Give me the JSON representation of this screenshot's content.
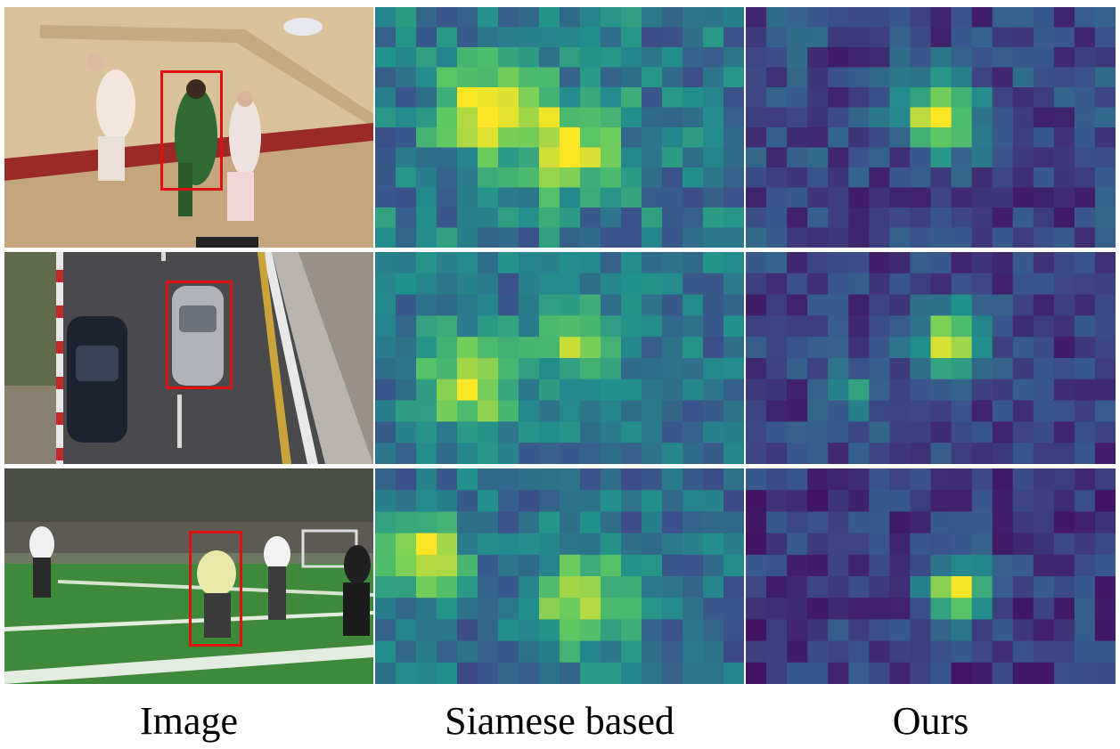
{
  "rows": [
    {
      "scene": "basketball",
      "target_box_color": "#e01010"
    },
    {
      "scene": "road-cars",
      "target_box_color": "#e01010"
    },
    {
      "scene": "soccer-field",
      "target_box_color": "#e01010"
    }
  ],
  "columns": [
    {
      "caption": "Image"
    },
    {
      "caption": "Siamese based"
    },
    {
      "caption": "Ours"
    }
  ],
  "colormap": [
    "#440154",
    "#3b528b",
    "#21918c",
    "#5ec962",
    "#fde725"
  ]
}
